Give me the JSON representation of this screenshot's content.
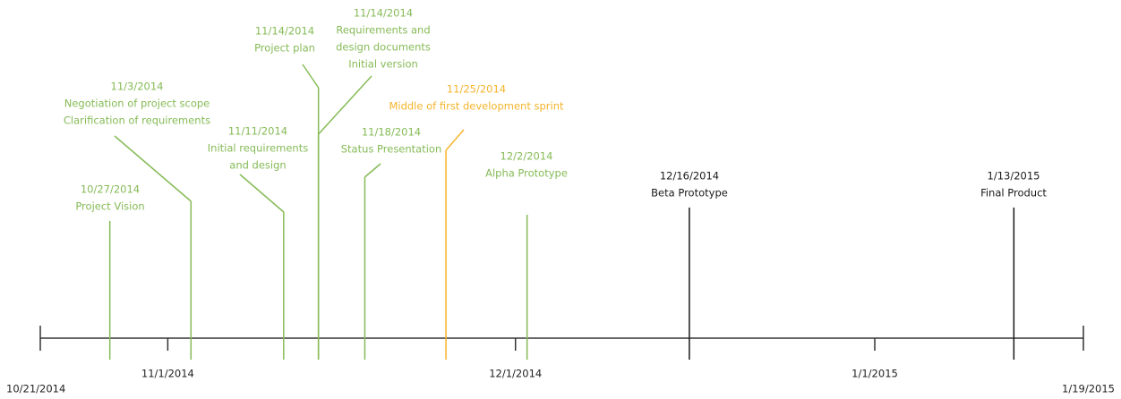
{
  "axis": {
    "start": "10/21/2014",
    "end": "1/19/2015",
    "ticks": [
      "11/1/2014",
      "12/1/2014",
      "1/1/2015"
    ]
  },
  "events": [
    {
      "date": "10/27/2014",
      "lines": [
        "Project Vision"
      ],
      "color": "#86bb57"
    },
    {
      "date": "11/3/2014",
      "lines": [
        "Negotiation of project scope",
        "Clarification of requirements"
      ],
      "color": "#86bb57"
    },
    {
      "date": "11/11/2014",
      "lines": [
        "Initial requirements",
        "and design"
      ],
      "color": "#86bb57"
    },
    {
      "date": "11/14/2014",
      "lines": [
        "Project plan"
      ],
      "color": "#86bb57"
    },
    {
      "date": "11/14/2014",
      "lines": [
        "Requirements and",
        "design documents",
        "Initial version"
      ],
      "color": "#86bb57"
    },
    {
      "date": "11/18/2014",
      "lines": [
        "Status Presentation"
      ],
      "color": "#86bb57"
    },
    {
      "date": "11/25/2014",
      "lines": [
        "Middle of first development sprint"
      ],
      "color": "#f4b42c"
    },
    {
      "date": "12/2/2014",
      "lines": [
        "Alpha Prototype"
      ],
      "color": "#86bb57"
    },
    {
      "date": "12/16/2014",
      "lines": [
        "Beta Prototype"
      ],
      "color": "#1a1a1a"
    },
    {
      "date": "1/13/2015",
      "lines": [
        "Final Product"
      ],
      "color": "#1a1a1a"
    }
  ]
}
